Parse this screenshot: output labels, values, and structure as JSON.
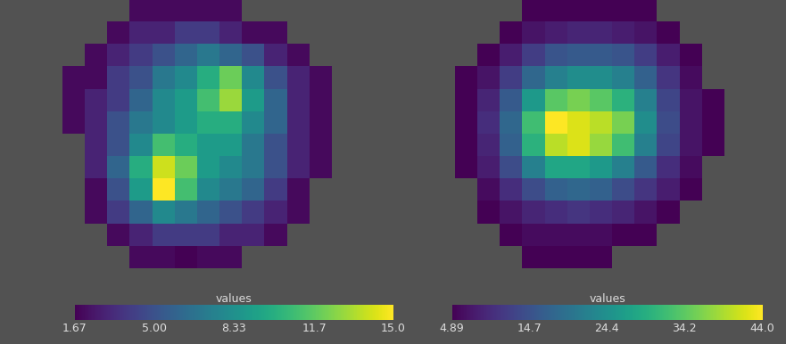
{
  "chart_data": [
    {
      "type": "heatmap",
      "tick_labels": false,
      "cells": [
        [
          null,
          null,
          null,
          2,
          2,
          2,
          2,
          2,
          null,
          null,
          null,
          null
        ],
        [
          null,
          null,
          2,
          3,
          3,
          4,
          4,
          3,
          2,
          2,
          null,
          null
        ],
        [
          null,
          2,
          3,
          4,
          5,
          6,
          7,
          6,
          5,
          3,
          2,
          null
        ],
        [
          2,
          2,
          4,
          5,
          7,
          8,
          10,
          12,
          8,
          5,
          3,
          2
        ],
        [
          2,
          3,
          4,
          6,
          8,
          9,
          11,
          13,
          9,
          6,
          3,
          2
        ],
        [
          2,
          3,
          5,
          7,
          8,
          9,
          10,
          10,
          8,
          6,
          3,
          2
        ],
        [
          null,
          3,
          5,
          8,
          11,
          10,
          9,
          9,
          7,
          5,
          3,
          2
        ],
        [
          null,
          3,
          6,
          10,
          14,
          12,
          9,
          8,
          7,
          5,
          3,
          2
        ],
        [
          null,
          2,
          5,
          9,
          15,
          11,
          8,
          7,
          6,
          4,
          2,
          null
        ],
        [
          null,
          2,
          4,
          6,
          8,
          7,
          6,
          5,
          4,
          3,
          2,
          null
        ],
        [
          null,
          null,
          2,
          3,
          4,
          4,
          4,
          3,
          3,
          2,
          null,
          null
        ],
        [
          null,
          null,
          null,
          2,
          2,
          1.67,
          2,
          2,
          null,
          null,
          null,
          null
        ]
      ],
      "colorbar": {
        "title": "values",
        "range": [
          1.67,
          15.0
        ],
        "ticks": [
          1.67,
          {
            "value": 5.0,
            "label": "5.00"
          },
          8.33,
          11.7,
          15.0
        ]
      }
    },
    {
      "type": "heatmap",
      "tick_labels": false,
      "cells": [
        [
          null,
          null,
          null,
          5,
          5,
          5,
          5,
          5,
          5,
          null,
          null,
          null
        ],
        [
          null,
          null,
          5,
          7,
          8,
          9,
          9,
          8,
          7,
          5,
          null,
          null
        ],
        [
          null,
          5,
          8,
          12,
          15,
          16,
          16,
          15,
          12,
          8,
          5,
          null
        ],
        [
          5,
          7,
          12,
          18,
          22,
          24,
          24,
          22,
          17,
          11,
          6,
          null
        ],
        [
          5,
          9,
          16,
          26,
          34,
          36,
          34,
          30,
          22,
          13,
          7,
          5
        ],
        [
          5,
          10,
          18,
          32,
          44,
          42,
          40,
          36,
          24,
          14,
          7,
          5
        ],
        [
          5,
          9,
          17,
          30,
          40,
          42,
          38,
          32,
          22,
          13,
          7,
          5
        ],
        [
          5,
          8,
          14,
          22,
          28,
          28,
          26,
          22,
          16,
          10,
          6,
          null
        ],
        [
          null,
          6,
          10,
          14,
          17,
          18,
          17,
          14,
          11,
          8,
          5,
          null
        ],
        [
          null,
          5,
          7,
          9,
          10,
          11,
          10,
          9,
          7,
          5,
          null,
          null
        ],
        [
          null,
          null,
          5,
          6,
          6,
          6,
          6,
          5,
          5,
          null,
          null,
          null
        ],
        [
          null,
          null,
          null,
          4.89,
          5,
          5,
          5,
          null,
          null,
          null,
          null,
          null
        ]
      ],
      "colorbar": {
        "title": "values",
        "range": [
          4.89,
          44.0
        ],
        "ticks": [
          4.89,
          14.7,
          24.4,
          34.2,
          {
            "value": 44.0,
            "label": "44.0"
          }
        ]
      }
    }
  ]
}
